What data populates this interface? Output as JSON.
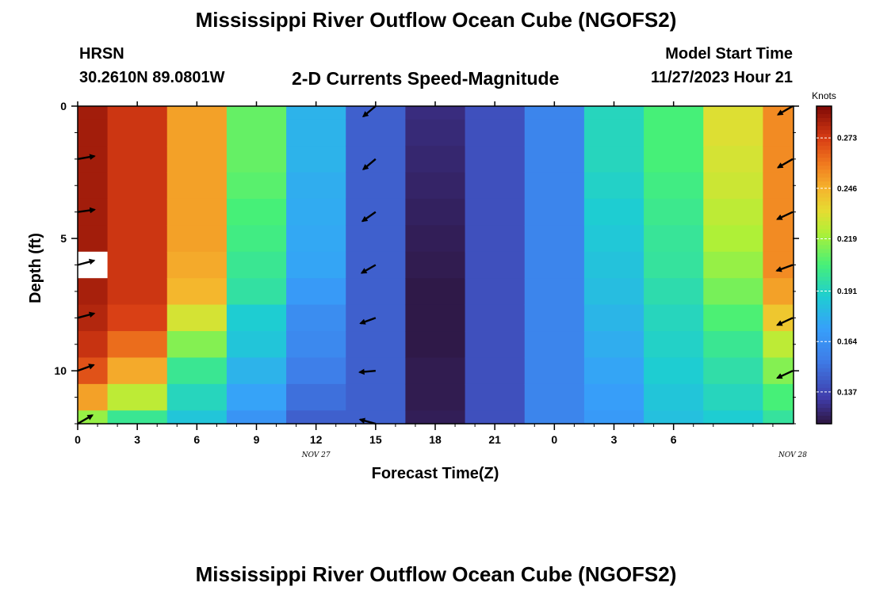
{
  "page": {
    "title_top": "Mississippi River Outflow Ocean Cube (NGOFS2)",
    "title_bottom": "Mississippi River Outflow Ocean Cube (NGOFS2)",
    "station": "HRSN",
    "location": "30.2610N  89.0801W",
    "plot_title": "2-D Currents Speed-Magnitude",
    "model_start_label": "Model Start Time",
    "model_start_value": "11/27/2023 Hour 21"
  },
  "chart_data": {
    "type": "heatmap",
    "title": "2-D Currents Speed-Magnitude",
    "xlabel": "Forecast Time(Z)",
    "ylabel": "Depth (ft)",
    "x_tick_labels": [
      "0",
      "3",
      "6",
      "9",
      "12",
      "15",
      "18",
      "21",
      "0",
      "3",
      "6"
    ],
    "x_date_labels": [
      {
        "label": "NOV 27",
        "hour_offset": 12
      },
      {
        "label": "NOV 28",
        "hour_offset": 36
      }
    ],
    "xlim": [
      0,
      36
    ],
    "ylim": [
      12,
      0
    ],
    "y_ticks": [
      0,
      5,
      10
    ],
    "y_minor_step": 1,
    "colorbar": {
      "title": "Knots",
      "tick_values": [
        0.273,
        0.246,
        0.219,
        0.191,
        0.164,
        0.137
      ],
      "tick_labels": [
        "0.273",
        "0.246",
        "0.219",
        "0.191",
        "0.164",
        "0.137"
      ],
      "range": [
        0.12,
        0.29
      ]
    },
    "time_hours": [
      0,
      3,
      6,
      9,
      12,
      15,
      18,
      21,
      24,
      27,
      30,
      33,
      36
    ],
    "depth_ft": [
      0,
      1,
      2,
      3,
      4,
      5,
      6,
      7,
      8,
      9,
      10,
      11,
      12
    ],
    "speed_knots_by_time": [
      [
        0.283,
        0.283,
        0.283,
        0.283,
        0.283,
        0.283,
        0.283,
        0.282,
        0.28,
        0.276,
        0.268,
        0.25,
        0.218
      ],
      [
        0.275,
        0.275,
        0.275,
        0.275,
        0.275,
        0.275,
        0.275,
        0.275,
        0.272,
        0.262,
        0.248,
        0.225,
        0.2
      ],
      [
        0.25,
        0.25,
        0.25,
        0.25,
        0.25,
        0.25,
        0.248,
        0.245,
        0.23,
        0.215,
        0.2,
        0.192,
        0.185
      ],
      [
        0.21,
        0.21,
        0.21,
        0.208,
        0.205,
        0.203,
        0.2,
        0.197,
        0.188,
        0.185,
        0.178,
        0.172,
        0.165
      ],
      [
        0.178,
        0.178,
        0.178,
        0.176,
        0.175,
        0.174,
        0.173,
        0.168,
        0.162,
        0.16,
        0.155,
        0.15,
        0.145
      ],
      [
        0.145,
        0.145,
        0.145,
        0.145,
        0.145,
        0.145,
        0.145,
        0.145,
        0.145,
        0.145,
        0.145,
        0.145,
        0.145
      ],
      [
        0.128,
        0.127,
        0.126,
        0.125,
        0.124,
        0.123,
        0.122,
        0.121,
        0.121,
        0.121,
        0.122,
        0.122,
        0.123
      ],
      [
        0.14,
        0.14,
        0.14,
        0.14,
        0.14,
        0.14,
        0.14,
        0.14,
        0.14,
        0.14,
        0.14,
        0.14,
        0.14
      ],
      [
        0.158,
        0.158,
        0.158,
        0.158,
        0.158,
        0.158,
        0.158,
        0.158,
        0.158,
        0.158,
        0.158,
        0.158,
        0.158
      ],
      [
        0.192,
        0.192,
        0.192,
        0.19,
        0.188,
        0.186,
        0.184,
        0.182,
        0.179,
        0.176,
        0.173,
        0.17,
        0.168
      ],
      [
        0.205,
        0.205,
        0.205,
        0.203,
        0.201,
        0.199,
        0.198,
        0.195,
        0.192,
        0.19,
        0.188,
        0.185,
        0.183
      ],
      [
        0.232,
        0.232,
        0.23,
        0.228,
        0.225,
        0.222,
        0.218,
        0.213,
        0.206,
        0.2,
        0.196,
        0.192,
        0.188
      ],
      [
        0.255,
        0.255,
        0.255,
        0.255,
        0.255,
        0.255,
        0.255,
        0.25,
        0.24,
        0.225,
        0.215,
        0.205,
        0.198
      ]
    ],
    "blank_cell": {
      "time_hour": 0,
      "depth_ft": 6
    },
    "vectors": [
      {
        "time": 0,
        "depth": 2,
        "dir_deg": 10,
        "len": 0.9
      },
      {
        "time": 0,
        "depth": 4,
        "dir_deg": 8,
        "len": 0.9
      },
      {
        "time": 0,
        "depth": 6,
        "dir_deg": 15,
        "len": 0.9
      },
      {
        "time": 0,
        "depth": 8,
        "dir_deg": 15,
        "len": 0.9
      },
      {
        "time": 0,
        "depth": 10,
        "dir_deg": 20,
        "len": 0.9
      },
      {
        "time": 0,
        "depth": 12,
        "dir_deg": 30,
        "len": 0.9
      },
      {
        "time": 15,
        "depth": 0,
        "dir_deg": 220,
        "len": 0.85
      },
      {
        "time": 15,
        "depth": 2,
        "dir_deg": 220,
        "len": 0.85
      },
      {
        "time": 15,
        "depth": 4,
        "dir_deg": 215,
        "len": 0.85
      },
      {
        "time": 15,
        "depth": 6,
        "dir_deg": 210,
        "len": 0.85
      },
      {
        "time": 15,
        "depth": 8,
        "dir_deg": 200,
        "len": 0.85
      },
      {
        "time": 15,
        "depth": 10,
        "dir_deg": 185,
        "len": 0.85
      },
      {
        "time": 15,
        "depth": 12,
        "dir_deg": 165,
        "len": 0.85
      },
      {
        "time": 36,
        "depth": 0,
        "dir_deg": 210,
        "len": 0.9
      },
      {
        "time": 36,
        "depth": 2,
        "dir_deg": 210,
        "len": 0.9
      },
      {
        "time": 36,
        "depth": 4,
        "dir_deg": 205,
        "len": 0.9
      },
      {
        "time": 36,
        "depth": 6,
        "dir_deg": 200,
        "len": 0.9
      },
      {
        "time": 36,
        "depth": 8,
        "dir_deg": 205,
        "len": 0.9
      },
      {
        "time": 36,
        "depth": 10,
        "dir_deg": 205,
        "len": 0.9
      }
    ]
  }
}
